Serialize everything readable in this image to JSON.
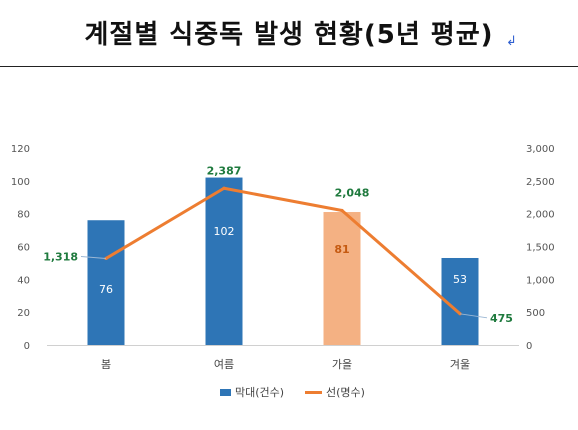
{
  "title": "계절별 식중독 발생 현황(5년 평균)",
  "return_mark": "↲",
  "colors": {
    "bar": "#2e75b6",
    "bar_highlight": "#f4b183",
    "line": "#ed7d31",
    "line_label": "#1f7a3e",
    "axis_text": "#555555"
  },
  "chart_data": {
    "type": "bar",
    "categories": [
      "봄",
      "여름",
      "가을",
      "겨울"
    ],
    "series": [
      {
        "name": "막대(건수)",
        "type": "bar",
        "axis": "left",
        "values": [
          76,
          102,
          81,
          53
        ],
        "labels": [
          "76",
          "102",
          "81",
          "53"
        ]
      },
      {
        "name": "선(명수)",
        "type": "line",
        "axis": "right",
        "values": [
          1318,
          2387,
          2048,
          475
        ],
        "labels": [
          "1,318",
          "2,387",
          "2,048",
          "475"
        ]
      }
    ],
    "highlight_category": "가을",
    "y_left": {
      "min": 0,
      "max": 120,
      "ticks": [
        "0",
        "20",
        "40",
        "60",
        "80",
        "100",
        "120"
      ]
    },
    "y_right": {
      "min": 0,
      "max": 3000,
      "ticks": [
        "0",
        "500",
        "1,000",
        "1,500",
        "2,000",
        "2,500",
        "3,000"
      ]
    },
    "legend_position": "bottom",
    "grid": false
  }
}
